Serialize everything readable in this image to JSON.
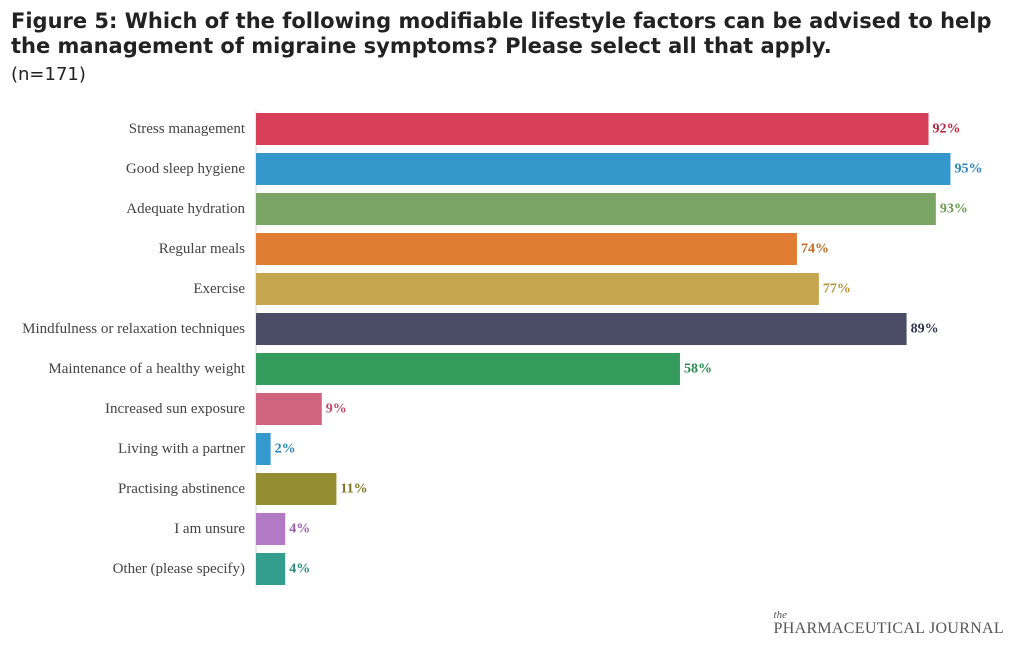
{
  "chart_data": {
    "type": "bar",
    "orientation": "horizontal",
    "title": "Figure 5: Which of the following modifiable lifestyle factors can be advised to help the management of migraine symptoms? Please select all that apply.",
    "subtitle": "(n=171)",
    "categories": [
      "Stress management",
      "Good sleep hygiene",
      "Adequate hydration",
      "Regular meals",
      "Exercise",
      "Mindfulness or relaxation techniques",
      "Maintenance of a healthy weight",
      "Increased sun exposure",
      "Living with a partner",
      "Practising abstinence",
      "I am unsure",
      "Other (please specify)"
    ],
    "values": [
      92,
      95,
      93,
      74,
      77,
      89,
      58,
      9,
      2,
      11,
      4,
      4
    ],
    "value_labels": [
      "92%",
      "95%",
      "93%",
      "74%",
      "77%",
      "89%",
      "58%",
      "9%",
      "2%",
      "11%",
      "4%",
      "4%"
    ],
    "colors": [
      "#d63f57",
      "#3498cd",
      "#7aa565",
      "#e17c35",
      "#c5a54e",
      "#4a4d65",
      "#349c5d",
      "#d0637e",
      "#3499cd",
      "#958d31",
      "#b27ac4",
      "#339d8e"
    ],
    "label_colors": [
      "#b8243e",
      "#2a86b8",
      "#6a9a52",
      "#c46a22",
      "#b8943c",
      "#2f3248",
      "#268a4c",
      "#c04a68",
      "#2a86b8",
      "#7d7520",
      "#9d5fb3",
      "#2a8a7b"
    ],
    "xlim": [
      0,
      100
    ],
    "grid": false,
    "legend": "none"
  },
  "branding": {
    "logo_the": "the",
    "logo_name": "PHARMACEUTICAL JOURNAL"
  }
}
